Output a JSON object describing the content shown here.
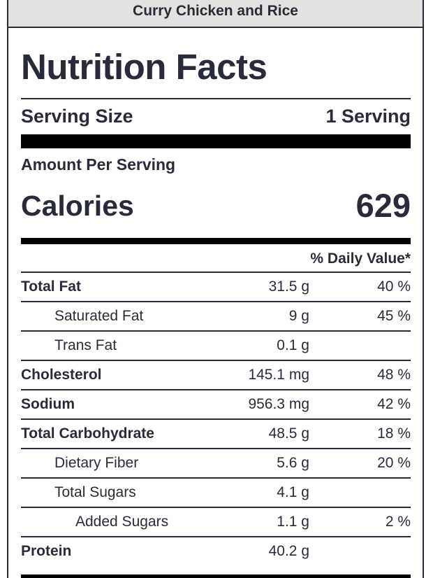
{
  "recipe_title": "Curry Chicken and Rice",
  "heading": "Nutrition Facts",
  "serving": {
    "label": "Serving Size",
    "value": "1 Serving"
  },
  "amount_per_serving": "Amount Per Serving",
  "calories": {
    "label": "Calories",
    "value": "629"
  },
  "daily_value_header": "% Daily Value*",
  "nutrients": [
    {
      "name": "Total Fat",
      "amount": "31.5 g",
      "dv": "40 %"
    },
    {
      "name": "Saturated Fat",
      "amount": "9 g",
      "dv": "45 %"
    },
    {
      "name": "Trans Fat",
      "amount": "0.1 g",
      "dv": ""
    },
    {
      "name": "Cholesterol",
      "amount": "145.1 mg",
      "dv": "48 %"
    },
    {
      "name": "Sodium",
      "amount": "956.3 mg",
      "dv": "42 %"
    },
    {
      "name": "Total Carbohydrate",
      "amount": "48.5 g",
      "dv": "18 %"
    },
    {
      "name": "Dietary Fiber",
      "amount": "5.6 g",
      "dv": "20 %"
    },
    {
      "name": "Total Sugars",
      "amount": "4.1 g",
      "dv": ""
    },
    {
      "name": "Added Sugars",
      "amount": "1.1 g",
      "dv": "2 %"
    },
    {
      "name": "Protein",
      "amount": "40.2 g",
      "dv": ""
    }
  ],
  "colors": {
    "text": "#2a2b3a",
    "header_bg": "#e2e2e2",
    "rule": "#000000"
  }
}
